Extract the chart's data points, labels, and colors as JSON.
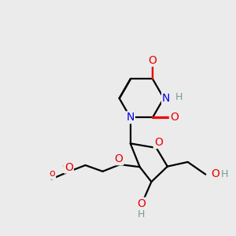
{
  "background_color": "#ebebeb",
  "figsize": [
    3.0,
    3.0
  ],
  "dpi": 100,
  "bond_lw": 1.6,
  "font_size": 10,
  "font_size_small": 9,
  "colors": {
    "C": "#000000",
    "N": "#0000ee",
    "O": "#ee0000",
    "H": "#7a9a9a"
  }
}
